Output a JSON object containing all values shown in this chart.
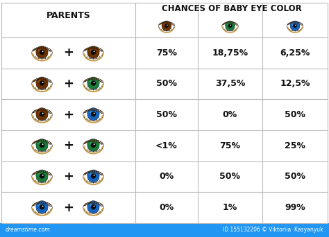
{
  "title": "CHANCES OF BABY EYE COLOR",
  "parents_label": "PARENTS",
  "rows": [
    {
      "eye1": "brown",
      "eye2": "brown",
      "brown_pct": "75%",
      "green_pct": "18,75%",
      "blue_pct": "6,25%"
    },
    {
      "eye1": "brown",
      "eye2": "green",
      "brown_pct": "50%",
      "green_pct": "37,5%",
      "blue_pct": "12,5%"
    },
    {
      "eye1": "brown",
      "eye2": "blue",
      "brown_pct": "50%",
      "green_pct": "0%",
      "blue_pct": "50%"
    },
    {
      "eye1": "green",
      "eye2": "green",
      "brown_pct": "<1%",
      "green_pct": "75%",
      "blue_pct": "25%"
    },
    {
      "eye1": "green",
      "eye2": "blue",
      "brown_pct": "0%",
      "green_pct": "50%",
      "blue_pct": "50%"
    },
    {
      "eye1": "blue",
      "eye2": "blue",
      "brown_pct": "0%",
      "green_pct": "1%",
      "blue_pct": "99%"
    }
  ],
  "eye_colors": {
    "brown": "#6B3000",
    "green": "#1A7A3A",
    "blue": "#1565C0"
  },
  "eye_colors_light": {
    "brown": "#A0522D",
    "green": "#3CB371",
    "blue": "#42A5F5"
  },
  "header_eye_colors": [
    "brown",
    "green",
    "blue"
  ],
  "bg_color": "#FFFFFF",
  "grid_color": "#BBBBBB",
  "text_color": "#111111",
  "footer_bg": "#2196F3",
  "footer_left": "dreamstime.com",
  "footer_right": "ID 155132206 © Viktoriia  Kasyanyuk",
  "font_size_title": 8.5,
  "font_size_data": 9,
  "font_size_parents": 9,
  "lash_color": "#3A2000",
  "eyelid_color": "#C8A050"
}
